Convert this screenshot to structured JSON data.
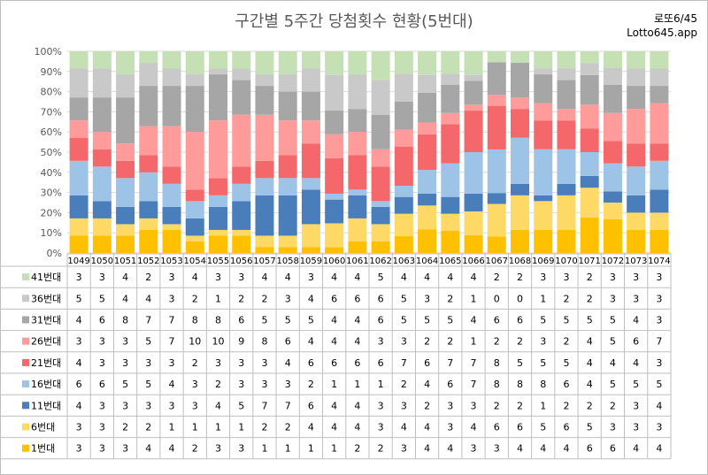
{
  "title": "구간별 5주간 당첨횟수 현황(5번대)",
  "brand": {
    "line1": "로또6/45",
    "line2": "Lotto645.app"
  },
  "chart_data": {
    "type": "bar",
    "stacked": "percent",
    "title": "구간별 5주간 당첨횟수 현황(5번대)",
    "y_ticks": [
      "0%",
      "10%",
      "20%",
      "30%",
      "40%",
      "50%",
      "60%",
      "70%",
      "80%",
      "90%",
      "100%"
    ],
    "ylim": [
      0,
      100
    ],
    "grid": true,
    "categories": [
      "1049",
      "1050",
      "1051",
      "1052",
      "1053",
      "1054",
      "1055",
      "1056",
      "1057",
      "1058",
      "1059",
      "1060",
      "1061",
      "1062",
      "1063",
      "1064",
      "1065",
      "1066",
      "1067",
      "1068",
      "1069",
      "1070",
      "1071",
      "1072",
      "1073",
      "1074"
    ],
    "series": [
      {
        "name": "1번대",
        "color": "#FFC000",
        "values": [
          3,
          3,
          3,
          4,
          4,
          2,
          3,
          3,
          1,
          1,
          1,
          1,
          2,
          2,
          3,
          4,
          4,
          3,
          3,
          4,
          4,
          4,
          6,
          6,
          4,
          4
        ]
      },
      {
        "name": "6번대",
        "color": "#FFD966",
        "values": [
          3,
          3,
          2,
          2,
          1,
          1,
          1,
          1,
          2,
          2,
          4,
          4,
          4,
          3,
          4,
          4,
          3,
          4,
          6,
          6,
          5,
          6,
          5,
          3,
          3,
          3
        ]
      },
      {
        "name": "11번대",
        "color": "#4A7EBB",
        "values": [
          4,
          3,
          3,
          3,
          3,
          3,
          4,
          5,
          7,
          7,
          6,
          4,
          4,
          3,
          3,
          2,
          3,
          3,
          2,
          2,
          1,
          2,
          2,
          2,
          3,
          4
        ]
      },
      {
        "name": "16번대",
        "color": "#9DC3E6",
        "values": [
          6,
          6,
          5,
          5,
          4,
          3,
          2,
          3,
          3,
          3,
          2,
          1,
          1,
          1,
          2,
          4,
          6,
          7,
          8,
          8,
          8,
          6,
          4,
          5,
          5,
          5
        ]
      },
      {
        "name": "21번대",
        "color": "#F4676A",
        "values": [
          4,
          3,
          3,
          3,
          3,
          2,
          3,
          3,
          3,
          4,
          6,
          6,
          6,
          6,
          7,
          6,
          7,
          7,
          8,
          5,
          5,
          5,
          4,
          4,
          4,
          3
        ]
      },
      {
        "name": "26번대",
        "color": "#FF9B9B",
        "values": [
          3,
          3,
          3,
          5,
          7,
          10,
          10,
          9,
          8,
          6,
          4,
          4,
          4,
          3,
          3,
          2,
          2,
          1,
          2,
          2,
          3,
          2,
          4,
          5,
          6,
          7
        ]
      },
      {
        "name": "31번대",
        "color": "#A6A6A6",
        "values": [
          4,
          6,
          8,
          7,
          7,
          8,
          8,
          6,
          5,
          5,
          5,
          4,
          4,
          6,
          5,
          5,
          5,
          4,
          6,
          6,
          5,
          5,
          5,
          5,
          4,
          3
        ]
      },
      {
        "name": "36번대",
        "color": "#C9C9C9",
        "values": [
          5,
          5,
          4,
          4,
          3,
          2,
          1,
          2,
          2,
          3,
          4,
          6,
          6,
          6,
          5,
          3,
          2,
          1,
          0,
          0,
          1,
          2,
          2,
          3,
          3,
          3
        ]
      },
      {
        "name": "41번대",
        "color": "#C5E0B4",
        "values": [
          3,
          3,
          4,
          2,
          3,
          4,
          3,
          3,
          4,
          4,
          3,
          4,
          4,
          5,
          4,
          4,
          4,
          4,
          2,
          2,
          3,
          3,
          2,
          3,
          3,
          3
        ]
      }
    ]
  }
}
